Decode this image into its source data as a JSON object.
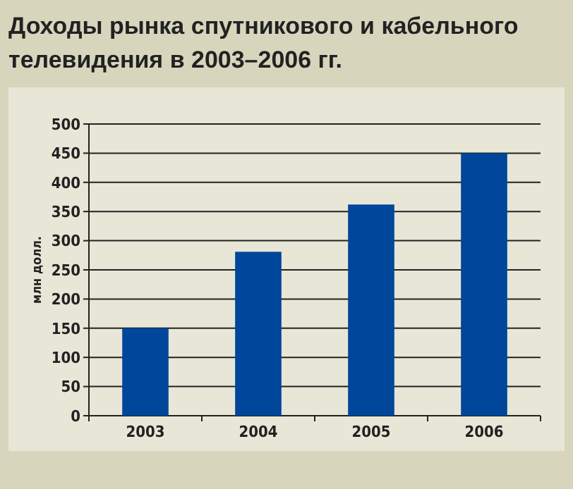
{
  "chart_data": {
    "type": "bar",
    "title": "Доходы рынка спутникового и кабельного\nтелевидения в 2003–2006 гг.",
    "ylabel": "млн долл.",
    "categories": [
      "2003",
      "2004",
      "2005",
      "2006"
    ],
    "values": [
      150,
      281,
      362,
      450
    ],
    "color": "#00469a",
    "ylim": [
      0,
      500
    ],
    "yticks": [
      0,
      50,
      100,
      150,
      200,
      250,
      300,
      350,
      400,
      450,
      500
    ],
    "grid": "y"
  }
}
